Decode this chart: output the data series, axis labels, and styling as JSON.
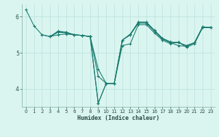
{
  "xlabel": "Humidex (Indice chaleur)",
  "bg_color": "#daf5f0",
  "plot_bg_color": "#daf5f0",
  "line_color": "#1a7a6e",
  "grid_color": "#b8e0da",
  "spine_color": "#7aaa9a",
  "tick_color": "#2a4a44",
  "xlim": [
    -0.5,
    23.5
  ],
  "ylim": [
    3.5,
    6.35
  ],
  "yticks": [
    4,
    5,
    6
  ],
  "xticks": [
    0,
    1,
    2,
    3,
    4,
    5,
    6,
    7,
    8,
    9,
    10,
    11,
    12,
    13,
    14,
    15,
    16,
    17,
    18,
    19,
    20,
    21,
    22,
    23
  ],
  "xlabel_fontsize": 6.0,
  "tick_fontsize": 5.0,
  "lines": [
    {
      "x": [
        0,
        1,
        2,
        3,
        4,
        5,
        6,
        7,
        8,
        9,
        10,
        11,
        12,
        13,
        14,
        15,
        16,
        17,
        18,
        19,
        20,
        21,
        22,
        23
      ],
      "y": [
        6.2,
        5.75,
        5.5,
        5.45,
        5.5,
        5.52,
        5.5,
        5.48,
        5.45,
        3.6,
        4.15,
        4.15,
        5.2,
        5.25,
        5.78,
        5.78,
        5.55,
        5.35,
        5.25,
        5.3,
        5.15,
        5.25,
        5.7,
        5.7
      ]
    },
    {
      "x": [
        2,
        3,
        4,
        5,
        6,
        7,
        8,
        9,
        10,
        11,
        12,
        13,
        14,
        15,
        16,
        17,
        18,
        19,
        20,
        21,
        22,
        23
      ],
      "y": [
        5.5,
        5.45,
        5.58,
        5.57,
        5.5,
        5.48,
        5.45,
        4.55,
        4.15,
        4.15,
        5.35,
        5.5,
        5.82,
        5.82,
        5.6,
        5.38,
        5.28,
        5.2,
        5.18,
        5.28,
        5.7,
        5.7
      ]
    },
    {
      "x": [
        3,
        4,
        5,
        6,
        7,
        8,
        9,
        10,
        11,
        12,
        13,
        14,
        15,
        16,
        17,
        18,
        19,
        20,
        21,
        22,
        23
      ],
      "y": [
        5.45,
        5.6,
        5.57,
        5.5,
        5.48,
        5.45,
        4.35,
        4.15,
        4.15,
        5.35,
        5.52,
        5.85,
        5.85,
        5.62,
        5.4,
        5.3,
        5.28,
        5.2,
        5.28,
        5.72,
        5.7
      ]
    },
    {
      "x": [
        3,
        4,
        5,
        6,
        7,
        8,
        9,
        10,
        11,
        12,
        13,
        14,
        15,
        16,
        17,
        18,
        19,
        20,
        21,
        22,
        23
      ],
      "y": [
        5.45,
        5.57,
        5.55,
        5.5,
        5.48,
        5.45,
        3.6,
        4.15,
        4.15,
        5.35,
        5.5,
        5.85,
        5.85,
        5.62,
        5.4,
        5.3,
        5.28,
        5.2,
        5.28,
        5.72,
        5.7
      ]
    }
  ]
}
